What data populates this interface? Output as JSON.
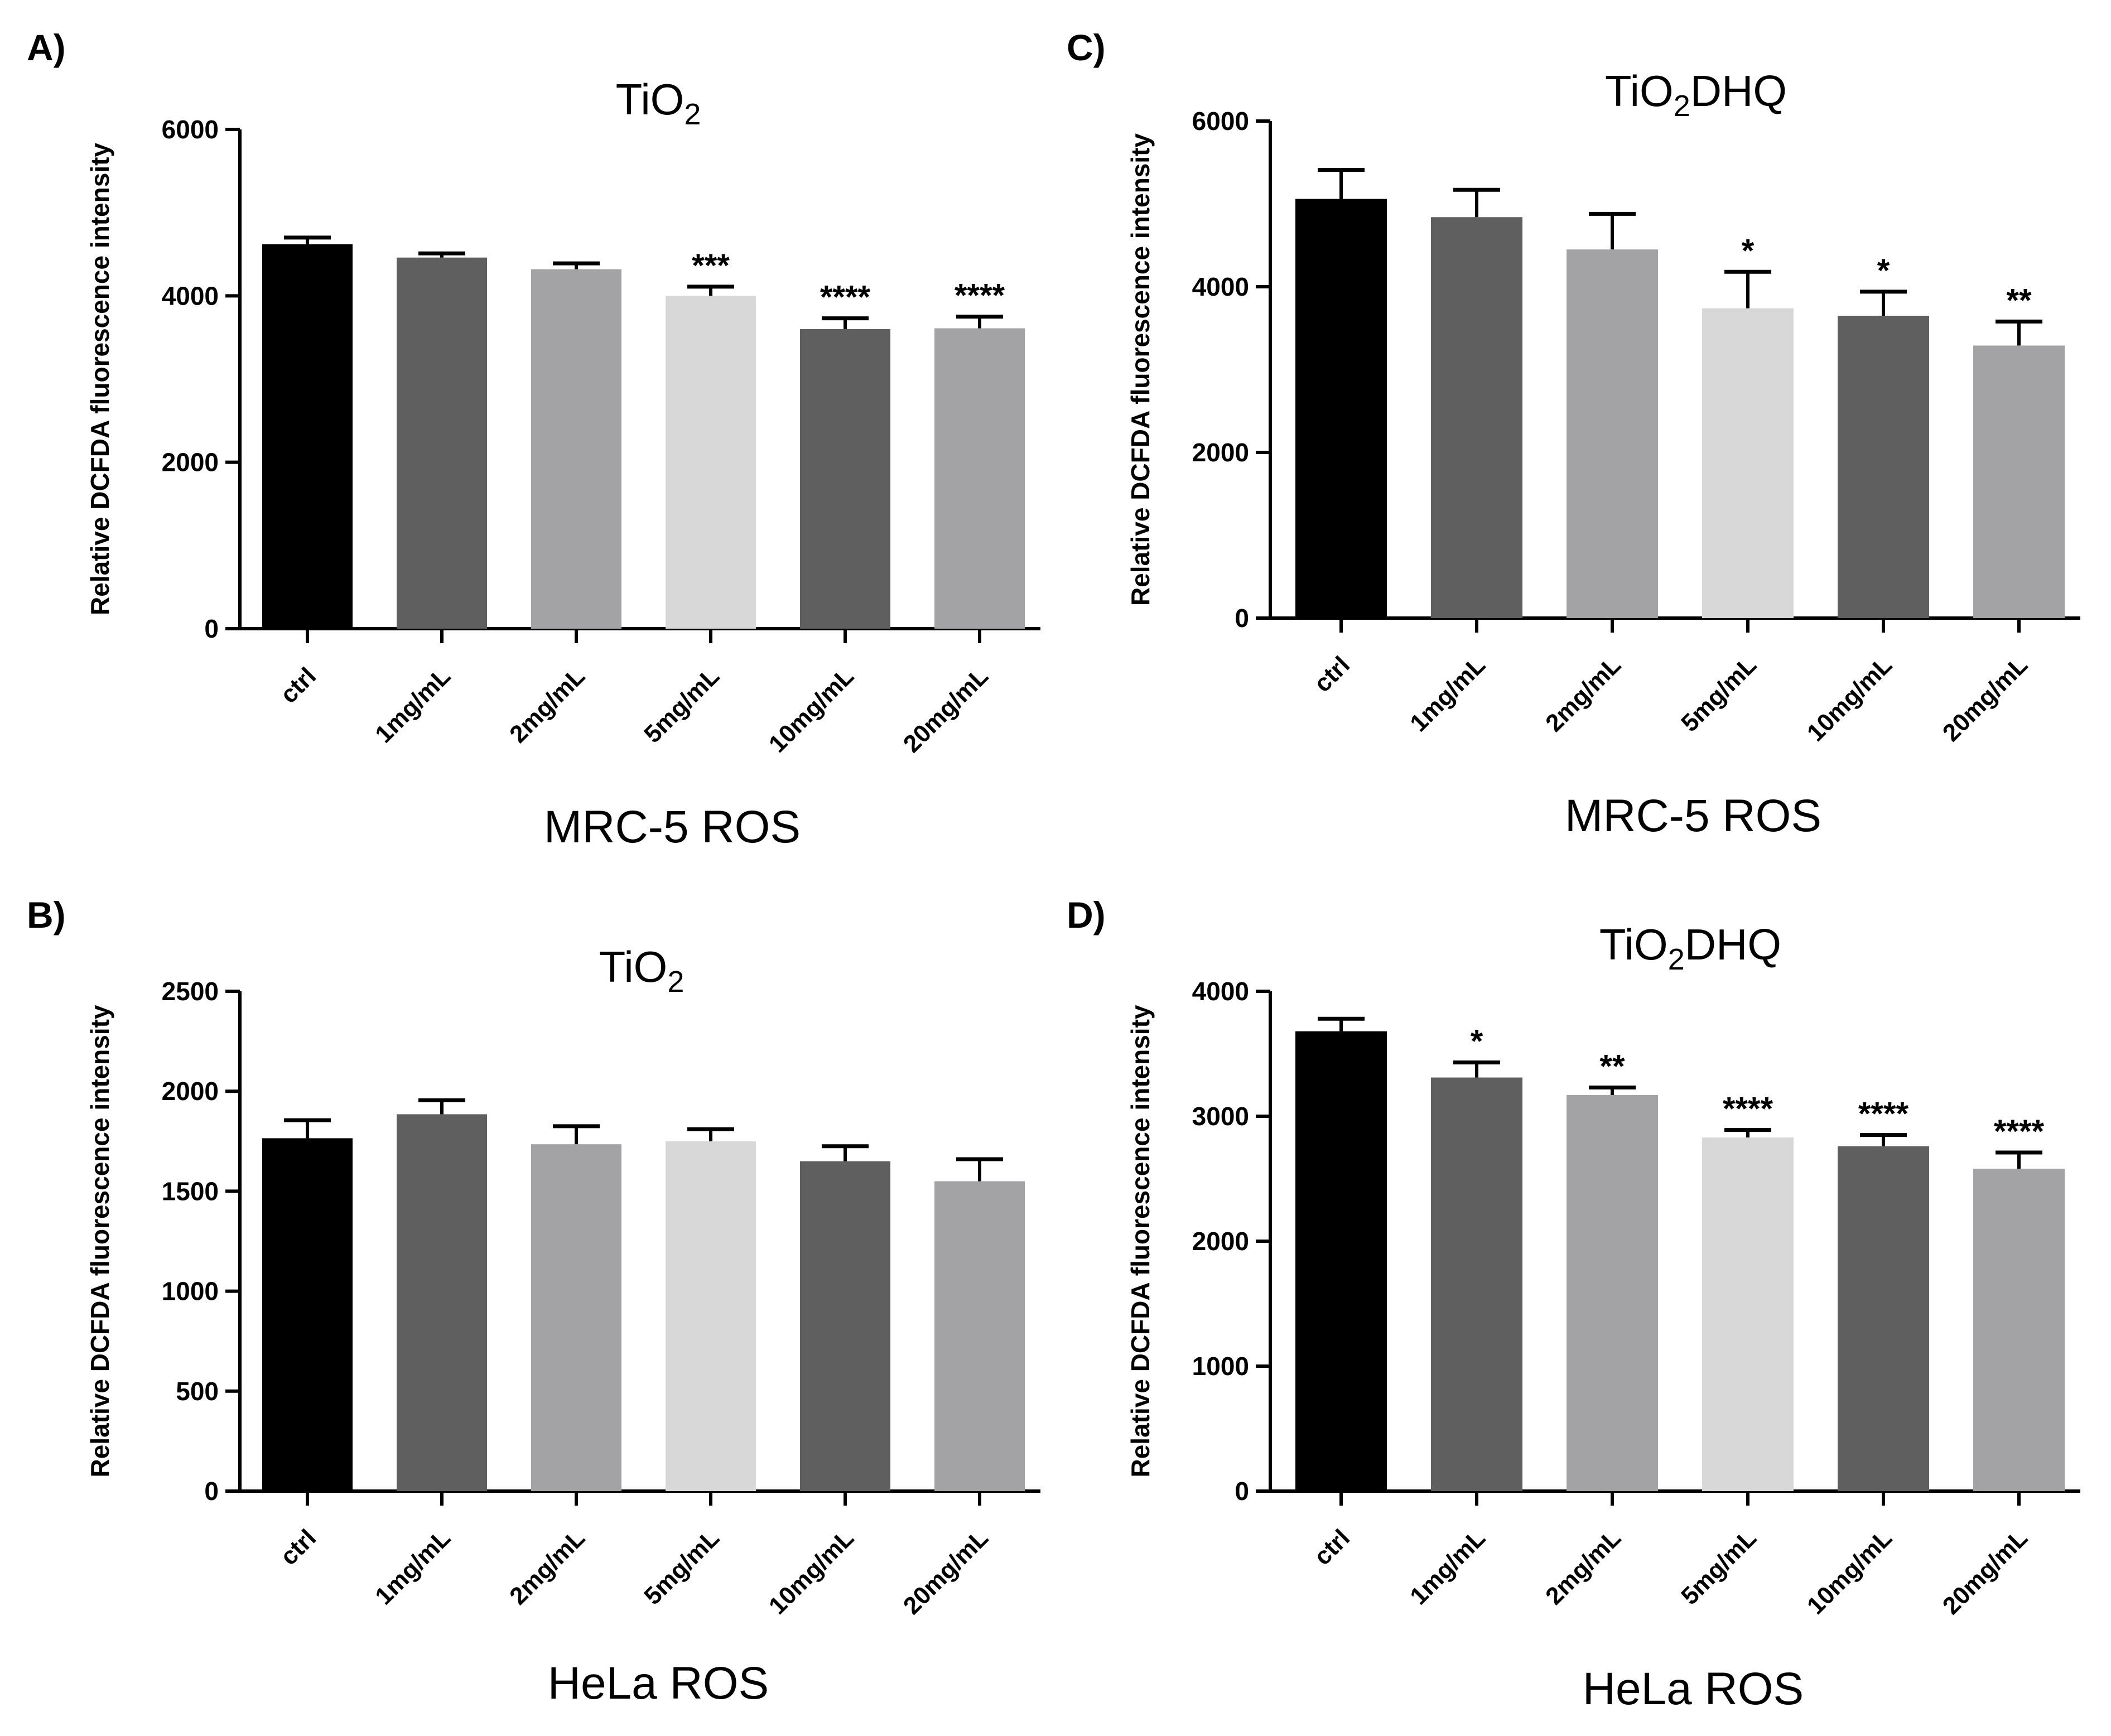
{
  "chart_data": [
    {
      "type": "bar",
      "panel_label": "A)",
      "title": "TiO",
      "title_subscript": "2",
      "title_suffix": "",
      "xlabel": "MRC-5 ROS",
      "ylabel": "Relative DCFDA fluorescence intensity",
      "categories": [
        "ctrl",
        "1mg/mL",
        "2mg/mL",
        "5mg/mL",
        "10mg/mL",
        "20mg/mL"
      ],
      "values": [
        4620,
        4460,
        4320,
        4000,
        3600,
        3610
      ],
      "errors": [
        80,
        50,
        70,
        110,
        130,
        140
      ],
      "significance": [
        "",
        "",
        "",
        "***",
        "****",
        "****"
      ],
      "ylim": [
        0,
        6000
      ],
      "yticks": [
        0,
        2000,
        4000,
        6000
      ],
      "ytick_labels": [
        "0",
        "2000",
        "4000",
        "6000"
      ],
      "bar_colors": [
        "#000000",
        "#5f5f5f",
        "#a3a3a6",
        "#d8d8d8",
        "#5f5f5f",
        "#a3a3a6"
      ],
      "grid": false
    },
    {
      "type": "bar",
      "panel_label": "B)",
      "title": "TiO",
      "title_subscript": "2",
      "title_suffix": "",
      "xlabel": "HeLa ROS",
      "ylabel": "Relative DCFDA fluorescence intensity",
      "categories": [
        "ctrl",
        "1mg/mL",
        "2mg/mL",
        "5mg/mL",
        "10mg/mL",
        "20mg/mL"
      ],
      "values": [
        1765,
        1885,
        1735,
        1750,
        1650,
        1550
      ],
      "errors": [
        90,
        70,
        90,
        60,
        75,
        110
      ],
      "significance": [
        "",
        "",
        "",
        "",
        "",
        ""
      ],
      "ylim": [
        0,
        2500
      ],
      "yticks": [
        0,
        500,
        1000,
        1500,
        2000,
        2500
      ],
      "ytick_labels": [
        "0",
        "500",
        "1000",
        "1500",
        "2000",
        "2500"
      ],
      "bar_colors": [
        "#000000",
        "#5f5f5f",
        "#a3a3a6",
        "#d8d8d8",
        "#5f5f5f",
        "#a3a3a6"
      ],
      "grid": false
    },
    {
      "type": "bar",
      "panel_label": "C)",
      "title": "TiO",
      "title_subscript": "2",
      "title_suffix": "DHQ",
      "xlabel": "MRC-5 ROS",
      "ylabel": "Relative DCFDA fluorescence intensity",
      "categories": [
        "ctrl",
        "1mg/mL",
        "2mg/mL",
        "5mg/mL",
        "10mg/mL",
        "20mg/mL"
      ],
      "values": [
        5060,
        4840,
        4450,
        3740,
        3650,
        3290
      ],
      "errors": [
        350,
        330,
        430,
        440,
        290,
        290
      ],
      "significance": [
        "",
        "",
        "",
        "*",
        "*",
        "**"
      ],
      "ylim": [
        0,
        6000
      ],
      "yticks": [
        0,
        2000,
        4000,
        6000
      ],
      "ytick_labels": [
        "0",
        "2000",
        "4000",
        "6000"
      ],
      "bar_colors": [
        "#000000",
        "#5f5f5f",
        "#a3a3a6",
        "#d8d8d8",
        "#5f5f5f",
        "#a3a3a6"
      ],
      "grid": false
    },
    {
      "type": "bar",
      "panel_label": "D)",
      "title": "TiO",
      "title_subscript": "2",
      "title_suffix": "DHQ",
      "xlabel": "HeLa ROS",
      "ylabel": "Relative DCFDA fluorescence intensity",
      "categories": [
        "ctrl",
        "1mg/mL",
        "2mg/mL",
        "5mg/mL",
        "10mg/mL",
        "20mg/mL"
      ],
      "values": [
        3680,
        3310,
        3170,
        2830,
        2760,
        2580
      ],
      "errors": [
        100,
        120,
        60,
        60,
        90,
        130
      ],
      "significance": [
        "",
        "*",
        "**",
        "****",
        "****",
        "****"
      ],
      "ylim": [
        0,
        4000
      ],
      "yticks": [
        0,
        1000,
        2000,
        3000,
        4000
      ],
      "ytick_labels": [
        "0",
        "1000",
        "2000",
        "3000",
        "4000"
      ],
      "bar_colors": [
        "#000000",
        "#5f5f5f",
        "#a3a3a6",
        "#d8d8d8",
        "#5f5f5f",
        "#a3a3a6"
      ],
      "grid": false
    }
  ]
}
